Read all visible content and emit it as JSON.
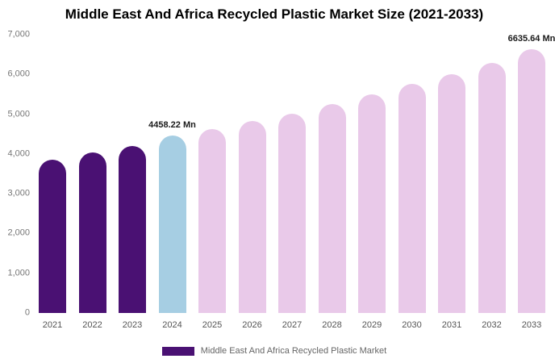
{
  "title": "Middle East And Africa Recycled Plastic Market Size (2021-2033)",
  "chart_data": {
    "type": "bar",
    "categories": [
      "2021",
      "2022",
      "2023",
      "2024",
      "2025",
      "2026",
      "2027",
      "2028",
      "2029",
      "2030",
      "2031",
      "2032",
      "2033"
    ],
    "values": [
      3860,
      4030,
      4200,
      4458.22,
      4620,
      4820,
      5020,
      5260,
      5500,
      5760,
      6010,
      6300,
      6635.64
    ],
    "ylim": [
      0,
      7000
    ],
    "yticks": [
      0,
      1000,
      2000,
      3000,
      4000,
      5000,
      6000,
      7000
    ],
    "ytick_labels": [
      "0",
      "1,000",
      "2,000",
      "3,000",
      "4,000",
      "5,000",
      "6,000",
      "7,000"
    ],
    "xlabel": "",
    "ylabel": "",
    "grid": "off",
    "legend_position": "bottom",
    "bar_colors": [
      "#4a1173",
      "#4a1173",
      "#4a1173",
      "#a6cee3",
      "#e9c9e9",
      "#e9c9e9",
      "#e9c9e9",
      "#e9c9e9",
      "#e9c9e9",
      "#e9c9e9",
      "#e9c9e9",
      "#e9c9e9",
      "#e9c9e9"
    ],
    "annotations": [
      {
        "index": 3,
        "text": "4458.22 Mn"
      },
      {
        "index": 12,
        "text": "6635.64 Mn"
      }
    ],
    "legend": [
      {
        "label": "Middle East And Africa Recycled Plastic Market",
        "color": "#4a1173"
      }
    ]
  }
}
